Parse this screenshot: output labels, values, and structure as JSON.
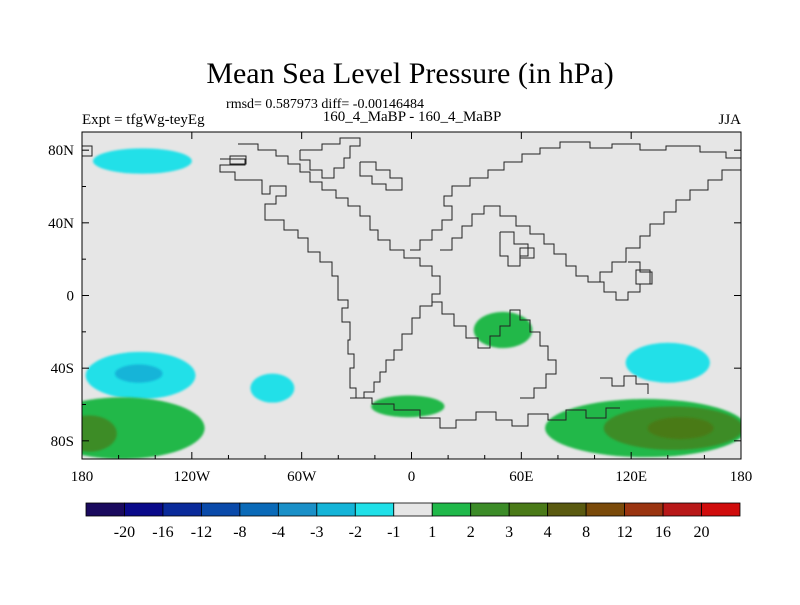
{
  "chart_data": {
    "type": "heatmap",
    "title": "Mean Sea Level Pressure (in hPa)",
    "subtitle": "rmsd= 0.587973 diff= -0.00146484",
    "left_label": "Expt = tfgWg-teyEg",
    "center_label": "160_4_MaBP - 160_4_MaBP",
    "right_label": "JJA",
    "projection": "cylindrical equidistant, longitude 180 to 180",
    "xlim": [
      -180,
      180
    ],
    "ylim": [
      -90,
      90
    ],
    "x_ticks": [
      {
        "value": -180,
        "label": "180"
      },
      {
        "value": -120,
        "label": "120W"
      },
      {
        "value": -60,
        "label": "60W"
      },
      {
        "value": 0,
        "label": "0"
      },
      {
        "value": 60,
        "label": "60E"
      },
      {
        "value": 120,
        "label": "120E"
      },
      {
        "value": 180,
        "label": "180"
      }
    ],
    "y_ticks": [
      {
        "value": 80,
        "label": "80N"
      },
      {
        "value": 40,
        "label": "40N"
      },
      {
        "value": 0,
        "label": "0"
      },
      {
        "value": -40,
        "label": "40S"
      },
      {
        "value": -80,
        "label": "80S"
      }
    ],
    "colorbar": {
      "colors": [
        "#1a0a5e",
        "#0a0a8a",
        "#0a2a9a",
        "#0a4aaa",
        "#0a6ab8",
        "#1a90c8",
        "#14b4d8",
        "#20e0e8",
        "#e6e6e6",
        "#20b84a",
        "#3c8c28",
        "#4a7a18",
        "#5a5a10",
        "#7a4a0a",
        "#9a3410",
        "#b81818",
        "#d00c0c"
      ],
      "labels": [
        "-20",
        "-16",
        "-12",
        "-8",
        "-4",
        "-3",
        "-2",
        "-1",
        "1",
        "2",
        "3",
        "4",
        "8",
        "12",
        "16",
        "20"
      ]
    },
    "background_range": "-1 to 1",
    "anomaly_regions": [
      {
        "name": "arctic-cyan",
        "level": "-2 to -1",
        "color": "#20e0e8",
        "lon": -147,
        "lat": 74,
        "dlon": 27,
        "dlat": 7
      },
      {
        "name": "south-pacific-cyan",
        "level": "-2 to -1",
        "color": "#20e0e8",
        "lon": -148,
        "lat": -44,
        "dlon": 30,
        "dlat": 13
      },
      {
        "name": "south-pacific-blue",
        "level": "-3 to -2",
        "color": "#14b4d8",
        "lon": -149,
        "lat": -43,
        "dlon": 13,
        "dlat": 5
      },
      {
        "name": "south-america-cyan",
        "level": "-2 to -1",
        "color": "#20e0e8",
        "lon": -76,
        "lat": -51,
        "dlon": 12,
        "dlat": 8
      },
      {
        "name": "indian-ocean-cyan",
        "level": "-2 to -1",
        "color": "#20e0e8",
        "lon": 140,
        "lat": -37,
        "dlon": 23,
        "dlat": 11
      },
      {
        "name": "africa-green",
        "level": "1 to 2",
        "color": "#20b84a",
        "lon": 50,
        "lat": -19,
        "dlon": 16,
        "dlat": 10
      },
      {
        "name": "south-atlantic-green",
        "level": "1 to 2",
        "color": "#20b84a",
        "lon": -2,
        "lat": -61,
        "dlon": 20,
        "dlat": 6
      },
      {
        "name": "southern-ocean-green-west",
        "level": "1 to 2",
        "color": "#20b84a",
        "lon": -158,
        "lat": -73,
        "dlon": 45,
        "dlat": 17
      },
      {
        "name": "southern-ocean-dark-west",
        "level": "2 to 3",
        "color": "#3c8c28",
        "lon": -176,
        "lat": -76,
        "dlon": 15,
        "dlat": 10
      },
      {
        "name": "southern-ocean-green-east",
        "level": "1 to 2",
        "color": "#20b84a",
        "lon": 128,
        "lat": -73,
        "dlon": 55,
        "dlat": 16
      },
      {
        "name": "southern-ocean-dark-east",
        "level": "2 to 3",
        "color": "#3c8c28",
        "lon": 143,
        "lat": -73,
        "dlon": 38,
        "dlat": 12
      },
      {
        "name": "southern-ocean-darker-east",
        "level": "3 to 4",
        "color": "#4a7a18",
        "lon": 147,
        "lat": -73,
        "dlon": 18,
        "dlat": 6
      }
    ]
  }
}
